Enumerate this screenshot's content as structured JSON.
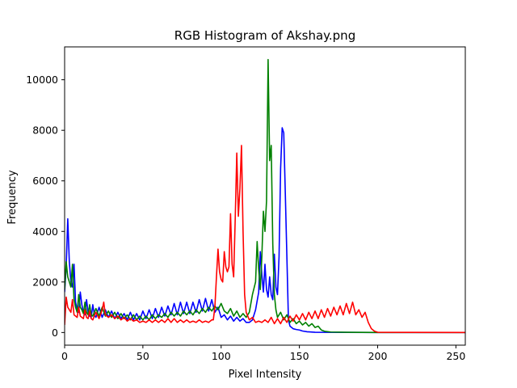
{
  "chart_data": {
    "type": "line",
    "title": "RGB Histogram of Akshay.png",
    "xlabel": "Pixel Intensity",
    "ylabel": "Frequency",
    "xlim": [
      0,
      256
    ],
    "ylim": [
      -500,
      11300
    ],
    "xticks": [
      0,
      50,
      100,
      150,
      200,
      250
    ],
    "yticks": [
      0,
      2000,
      4000,
      6000,
      8000,
      10000
    ],
    "grid": false,
    "series": [
      {
        "color": "#0000ff",
        "points": [
          [
            0,
            1600
          ],
          [
            1,
            2600
          ],
          [
            2,
            4500
          ],
          [
            3,
            2800
          ],
          [
            4,
            2000
          ],
          [
            5,
            1800
          ],
          [
            6,
            2700
          ],
          [
            7,
            1200
          ],
          [
            8,
            900
          ],
          [
            9,
            800
          ],
          [
            10,
            1600
          ],
          [
            11,
            1100
          ],
          [
            12,
            800
          ],
          [
            13,
            700
          ],
          [
            14,
            1300
          ],
          [
            15,
            800
          ],
          [
            16,
            650
          ],
          [
            17,
            600
          ],
          [
            18,
            1100
          ],
          [
            19,
            700
          ],
          [
            20,
            600
          ],
          [
            22,
            1000
          ],
          [
            24,
            600
          ],
          [
            26,
            900
          ],
          [
            28,
            600
          ],
          [
            30,
            850
          ],
          [
            32,
            550
          ],
          [
            34,
            800
          ],
          [
            36,
            550
          ],
          [
            38,
            750
          ],
          [
            40,
            500
          ],
          [
            42,
            800
          ],
          [
            44,
            500
          ],
          [
            46,
            750
          ],
          [
            48,
            500
          ],
          [
            50,
            850
          ],
          [
            52,
            550
          ],
          [
            54,
            900
          ],
          [
            56,
            550
          ],
          [
            58,
            950
          ],
          [
            60,
            600
          ],
          [
            62,
            1000
          ],
          [
            64,
            650
          ],
          [
            66,
            1050
          ],
          [
            68,
            700
          ],
          [
            70,
            1150
          ],
          [
            72,
            700
          ],
          [
            74,
            1200
          ],
          [
            76,
            750
          ],
          [
            78,
            1200
          ],
          [
            80,
            750
          ],
          [
            82,
            1200
          ],
          [
            84,
            800
          ],
          [
            86,
            1300
          ],
          [
            88,
            850
          ],
          [
            90,
            1350
          ],
          [
            92,
            850
          ],
          [
            94,
            1300
          ],
          [
            96,
            800
          ],
          [
            98,
            1000
          ],
          [
            100,
            600
          ],
          [
            102,
            700
          ],
          [
            104,
            500
          ],
          [
            106,
            650
          ],
          [
            108,
            450
          ],
          [
            110,
            600
          ],
          [
            112,
            450
          ],
          [
            114,
            550
          ],
          [
            116,
            400
          ],
          [
            118,
            400
          ],
          [
            120,
            500
          ],
          [
            122,
            900
          ],
          [
            124,
            1600
          ],
          [
            125,
            3200
          ],
          [
            126,
            2300
          ],
          [
            127,
            1600
          ],
          [
            128,
            2700
          ],
          [
            129,
            1700
          ],
          [
            130,
            1400
          ],
          [
            131,
            2200
          ],
          [
            132,
            1500
          ],
          [
            133,
            1300
          ],
          [
            134,
            3100
          ],
          [
            135,
            1800
          ],
          [
            136,
            1500
          ],
          [
            137,
            3000
          ],
          [
            138,
            6500
          ],
          [
            139,
            8100
          ],
          [
            140,
            7900
          ],
          [
            141,
            5500
          ],
          [
            142,
            3000
          ],
          [
            143,
            500
          ],
          [
            144,
            250
          ],
          [
            146,
            150
          ],
          [
            148,
            120
          ],
          [
            150,
            100
          ],
          [
            152,
            60
          ],
          [
            155,
            30
          ],
          [
            160,
            10
          ],
          [
            200,
            0
          ],
          [
            256,
            0
          ]
        ]
      },
      {
        "color": "#008000",
        "points": [
          [
            0,
            1700
          ],
          [
            1,
            2800
          ],
          [
            2,
            2200
          ],
          [
            3,
            2000
          ],
          [
            4,
            1800
          ],
          [
            5,
            2700
          ],
          [
            6,
            1300
          ],
          [
            7,
            1000
          ],
          [
            8,
            800
          ],
          [
            9,
            1500
          ],
          [
            10,
            1000
          ],
          [
            11,
            900
          ],
          [
            12,
            750
          ],
          [
            13,
            1200
          ],
          [
            14,
            800
          ],
          [
            15,
            700
          ],
          [
            16,
            1100
          ],
          [
            17,
            700
          ],
          [
            18,
            650
          ],
          [
            20,
            950
          ],
          [
            22,
            650
          ],
          [
            24,
            1000
          ],
          [
            26,
            650
          ],
          [
            28,
            850
          ],
          [
            30,
            600
          ],
          [
            32,
            800
          ],
          [
            34,
            550
          ],
          [
            36,
            750
          ],
          [
            38,
            550
          ],
          [
            40,
            700
          ],
          [
            42,
            500
          ],
          [
            44,
            700
          ],
          [
            46,
            500
          ],
          [
            48,
            650
          ],
          [
            50,
            500
          ],
          [
            52,
            650
          ],
          [
            54,
            500
          ],
          [
            56,
            700
          ],
          [
            58,
            550
          ],
          [
            60,
            700
          ],
          [
            62,
            600
          ],
          [
            64,
            750
          ],
          [
            66,
            600
          ],
          [
            68,
            800
          ],
          [
            70,
            650
          ],
          [
            72,
            800
          ],
          [
            74,
            650
          ],
          [
            76,
            850
          ],
          [
            78,
            700
          ],
          [
            80,
            850
          ],
          [
            82,
            700
          ],
          [
            84,
            900
          ],
          [
            86,
            750
          ],
          [
            88,
            950
          ],
          [
            90,
            800
          ],
          [
            92,
            1000
          ],
          [
            94,
            850
          ],
          [
            96,
            1050
          ],
          [
            98,
            900
          ],
          [
            100,
            1150
          ],
          [
            102,
            850
          ],
          [
            104,
            750
          ],
          [
            106,
            950
          ],
          [
            108,
            650
          ],
          [
            110,
            850
          ],
          [
            112,
            600
          ],
          [
            114,
            750
          ],
          [
            116,
            600
          ],
          [
            118,
            800
          ],
          [
            120,
            1500
          ],
          [
            122,
            2000
          ],
          [
            123,
            3600
          ],
          [
            124,
            2500
          ],
          [
            125,
            1700
          ],
          [
            126,
            3000
          ],
          [
            127,
            4800
          ],
          [
            128,
            4000
          ],
          [
            129,
            5200
          ],
          [
            130,
            10800
          ],
          [
            131,
            6800
          ],
          [
            132,
            7400
          ],
          [
            133,
            3500
          ],
          [
            134,
            1500
          ],
          [
            135,
            900
          ],
          [
            136,
            600
          ],
          [
            138,
            800
          ],
          [
            140,
            500
          ],
          [
            142,
            700
          ],
          [
            144,
            400
          ],
          [
            146,
            550
          ],
          [
            148,
            350
          ],
          [
            150,
            450
          ],
          [
            152,
            300
          ],
          [
            154,
            400
          ],
          [
            156,
            250
          ],
          [
            158,
            350
          ],
          [
            160,
            200
          ],
          [
            162,
            250
          ],
          [
            164,
            100
          ],
          [
            166,
            50
          ],
          [
            170,
            20
          ],
          [
            180,
            10
          ],
          [
            200,
            0
          ],
          [
            256,
            0
          ]
        ]
      },
      {
        "color": "#ff0000",
        "points": [
          [
            0,
            300
          ],
          [
            1,
            1400
          ],
          [
            2,
            1000
          ],
          [
            3,
            900
          ],
          [
            4,
            800
          ],
          [
            5,
            1300
          ],
          [
            6,
            700
          ],
          [
            7,
            650
          ],
          [
            8,
            600
          ],
          [
            9,
            1000
          ],
          [
            10,
            650
          ],
          [
            11,
            600
          ],
          [
            12,
            550
          ],
          [
            13,
            900
          ],
          [
            14,
            600
          ],
          [
            15,
            550
          ],
          [
            16,
            850
          ],
          [
            17,
            550
          ],
          [
            18,
            500
          ],
          [
            20,
            800
          ],
          [
            22,
            550
          ],
          [
            24,
            900
          ],
          [
            25,
            1200
          ],
          [
            26,
            700
          ],
          [
            28,
            600
          ],
          [
            30,
            700
          ],
          [
            32,
            550
          ],
          [
            34,
            650
          ],
          [
            36,
            500
          ],
          [
            38,
            600
          ],
          [
            40,
            450
          ],
          [
            42,
            550
          ],
          [
            44,
            450
          ],
          [
            46,
            500
          ],
          [
            48,
            400
          ],
          [
            50,
            450
          ],
          [
            52,
            400
          ],
          [
            54,
            500
          ],
          [
            56,
            400
          ],
          [
            58,
            500
          ],
          [
            60,
            400
          ],
          [
            62,
            500
          ],
          [
            64,
            400
          ],
          [
            66,
            550
          ],
          [
            68,
            400
          ],
          [
            70,
            550
          ],
          [
            72,
            400
          ],
          [
            74,
            500
          ],
          [
            76,
            400
          ],
          [
            78,
            500
          ],
          [
            80,
            400
          ],
          [
            82,
            450
          ],
          [
            84,
            400
          ],
          [
            86,
            500
          ],
          [
            88,
            400
          ],
          [
            90,
            450
          ],
          [
            92,
            400
          ],
          [
            94,
            500
          ],
          [
            95,
            500
          ],
          [
            96,
            1000
          ],
          [
            97,
            2200
          ],
          [
            98,
            3300
          ],
          [
            99,
            2400
          ],
          [
            100,
            2100
          ],
          [
            101,
            2000
          ],
          [
            102,
            3200
          ],
          [
            103,
            2600
          ],
          [
            104,
            2400
          ],
          [
            105,
            2600
          ],
          [
            106,
            4700
          ],
          [
            107,
            2700
          ],
          [
            108,
            2200
          ],
          [
            109,
            4500
          ],
          [
            110,
            7100
          ],
          [
            111,
            4600
          ],
          [
            112,
            5700
          ],
          [
            113,
            7400
          ],
          [
            114,
            4000
          ],
          [
            115,
            1500
          ],
          [
            116,
            800
          ],
          [
            118,
            500
          ],
          [
            120,
            600
          ],
          [
            122,
            400
          ],
          [
            124,
            450
          ],
          [
            126,
            400
          ],
          [
            128,
            500
          ],
          [
            130,
            400
          ],
          [
            132,
            600
          ],
          [
            134,
            350
          ],
          [
            136,
            550
          ],
          [
            138,
            350
          ],
          [
            140,
            600
          ],
          [
            142,
            400
          ],
          [
            144,
            650
          ],
          [
            146,
            450
          ],
          [
            148,
            700
          ],
          [
            150,
            500
          ],
          [
            152,
            750
          ],
          [
            154,
            500
          ],
          [
            156,
            800
          ],
          [
            158,
            550
          ],
          [
            160,
            850
          ],
          [
            162,
            550
          ],
          [
            164,
            900
          ],
          [
            166,
            600
          ],
          [
            168,
            950
          ],
          [
            170,
            650
          ],
          [
            172,
            1000
          ],
          [
            174,
            700
          ],
          [
            176,
            1050
          ],
          [
            178,
            700
          ],
          [
            180,
            1150
          ],
          [
            182,
            750
          ],
          [
            184,
            1200
          ],
          [
            186,
            700
          ],
          [
            188,
            900
          ],
          [
            190,
            600
          ],
          [
            192,
            800
          ],
          [
            194,
            400
          ],
          [
            196,
            150
          ],
          [
            198,
            50
          ],
          [
            200,
            10
          ],
          [
            256,
            0
          ]
        ]
      }
    ]
  }
}
